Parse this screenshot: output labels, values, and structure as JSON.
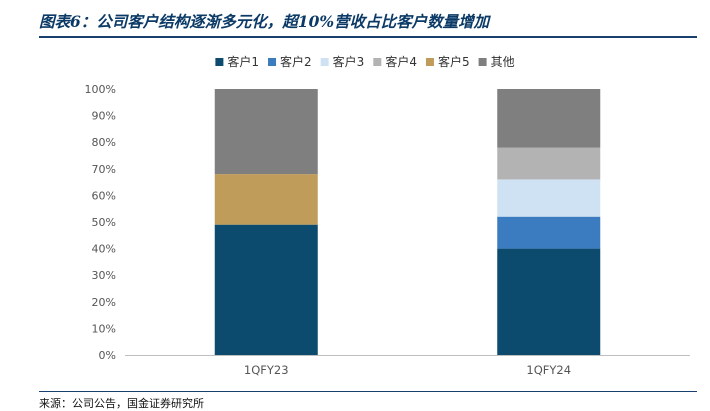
{
  "header": {
    "title": "图表6：公司客户结构逐渐多元化，超10%营收占比客户数量增加"
  },
  "footer": {
    "source": "来源：公司公告，国金证券研究所"
  },
  "chart_data": {
    "type": "bar",
    "stacked": true,
    "percent": true,
    "title": "",
    "xlabel": "",
    "ylabel": "",
    "ylim": [
      0,
      100
    ],
    "yticks": [
      "0%",
      "10%",
      "20%",
      "30%",
      "40%",
      "50%",
      "60%",
      "70%",
      "80%",
      "90%",
      "100%"
    ],
    "categories": [
      "1QFY23",
      "1QFY24"
    ],
    "legend_position": "top",
    "grid": false,
    "series": [
      {
        "name": "客户1",
        "color": "#0c4a6e",
        "values": [
          49,
          40
        ]
      },
      {
        "name": "客户2",
        "color": "#3b7bbf",
        "values": [
          0,
          12
        ]
      },
      {
        "name": "客户3",
        "color": "#cfe2f3",
        "values": [
          0,
          14
        ]
      },
      {
        "name": "客户4",
        "color": "#b3b3b3",
        "values": [
          0,
          12
        ]
      },
      {
        "name": "客户5",
        "color": "#c09c5a",
        "values": [
          19,
          0
        ]
      },
      {
        "name": "其他",
        "color": "#7f7f7f",
        "values": [
          32,
          22
        ]
      }
    ]
  }
}
